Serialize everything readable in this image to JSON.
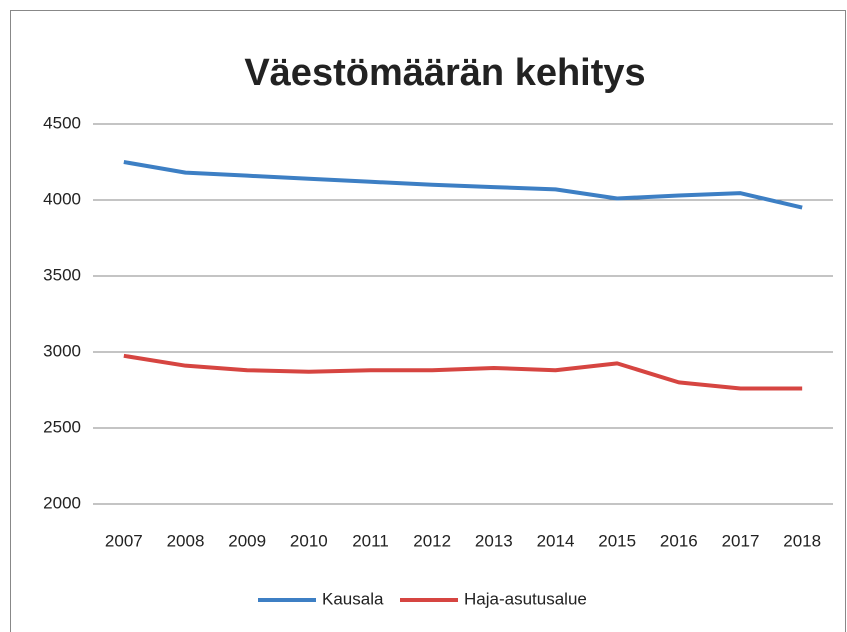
{
  "chart_data": {
    "type": "line",
    "title": "Väestömäärän kehitys",
    "categories": [
      "2007",
      "2008",
      "2009",
      "2010",
      "2011",
      "2012",
      "2013",
      "2014",
      "2015",
      "2016",
      "2017",
      "2018"
    ],
    "series": [
      {
        "name": "Kausala",
        "color": "#3d7fc4",
        "values": [
          4250,
          4180,
          4160,
          4140,
          4120,
          4100,
          4085,
          4070,
          4010,
          4030,
          4045,
          3950
        ]
      },
      {
        "name": "Haja-asutusalue",
        "color": "#d64541",
        "values": [
          2975,
          2910,
          2880,
          2870,
          2880,
          2880,
          2895,
          2880,
          2925,
          2800,
          2760,
          2760
        ]
      }
    ],
    "ylim": [
      2000,
      4500
    ],
    "yticks": [
      2000,
      2500,
      3000,
      3500,
      4000,
      4500
    ],
    "grid": true,
    "legend": "bottom"
  }
}
